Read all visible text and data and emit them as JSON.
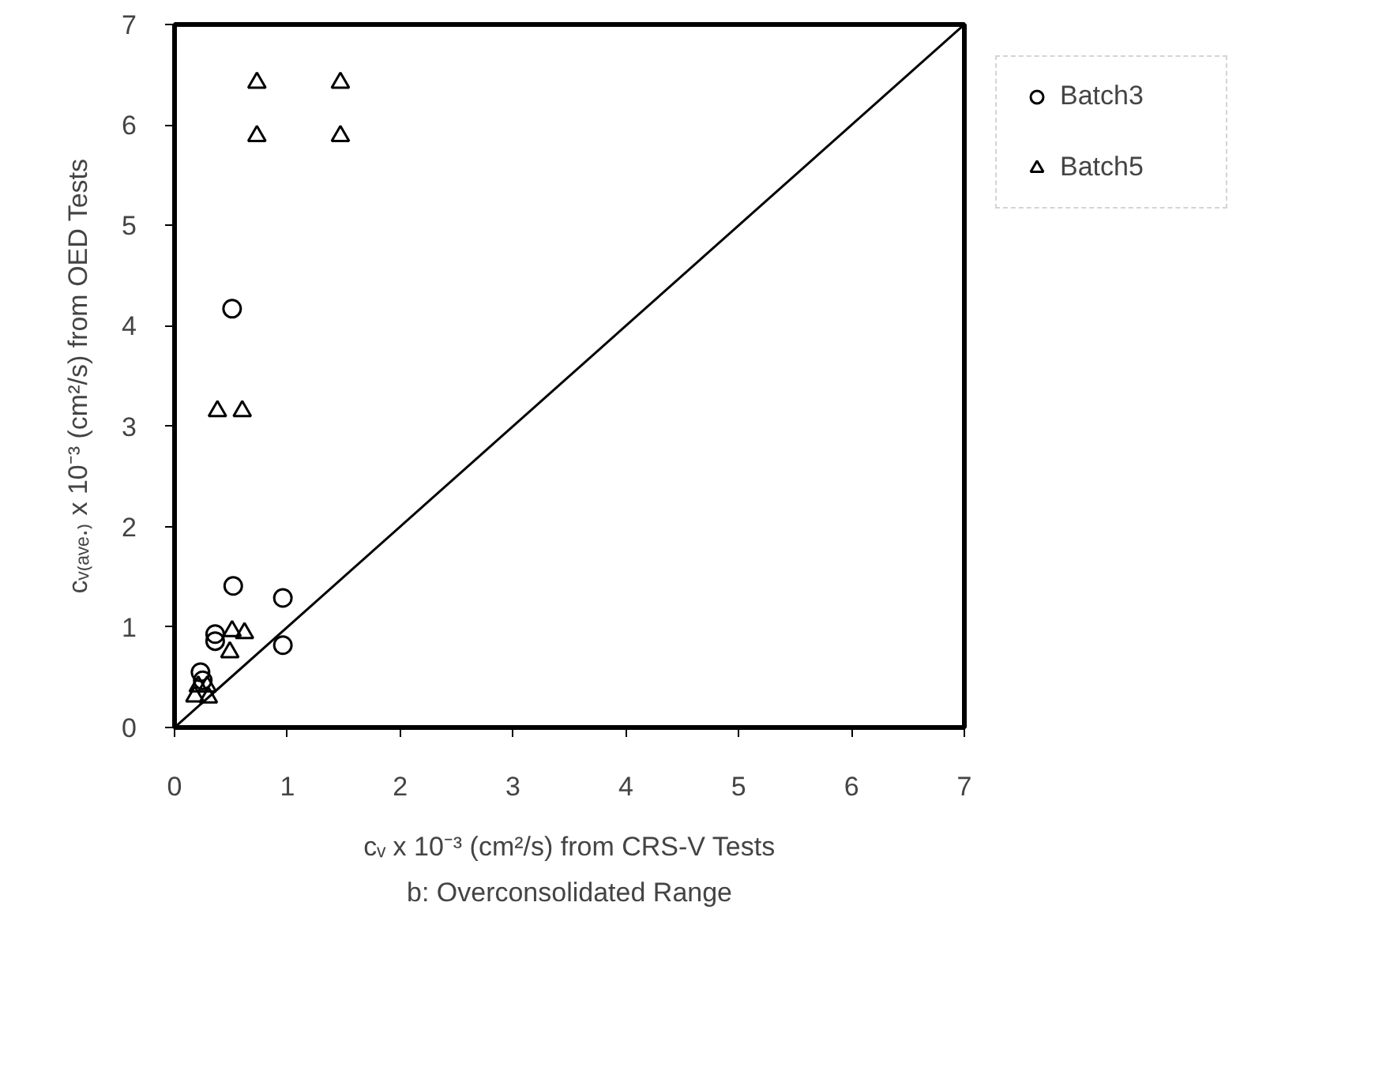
{
  "chart_data": {
    "type": "scatter",
    "title": "b: Overconsolidated Range",
    "xlabel": "cᵥ x 10⁻³ (cm²/s) from CRS-V Tests",
    "ylabel": "cᵥ₍ₐᵥₑ.₎ x 10⁻³ (cm²/s) from OED Tests",
    "xlim": [
      0,
      7
    ],
    "ylim": [
      0,
      7
    ],
    "xticks": [
      0,
      1,
      2,
      3,
      4,
      5,
      6,
      7
    ],
    "yticks": [
      0,
      1,
      2,
      3,
      4,
      5,
      6,
      7
    ],
    "grid": false,
    "legend": "right",
    "series": [
      {
        "name": "Batch3",
        "color": "#000000",
        "marker": "circle",
        "x": [
          0.51,
          0.52,
          0.96,
          0.96,
          0.36,
          0.36,
          0.23,
          0.25
        ],
        "values": [
          4.17,
          1.41,
          1.29,
          0.82,
          0.93,
          0.86,
          0.55,
          0.47
        ]
      },
      {
        "name": "Batch5",
        "color": "#000000",
        "marker": "triangle",
        "x": [
          0.73,
          1.47,
          0.73,
          1.47,
          0.38,
          0.6,
          0.51,
          0.62,
          0.49,
          0.21,
          0.29,
          0.18,
          0.3
        ],
        "values": [
          6.42,
          6.42,
          5.89,
          5.89,
          3.15,
          3.15,
          0.96,
          0.94,
          0.75,
          0.41,
          0.41,
          0.31,
          0.3
        ]
      },
      {
        "type": "line",
        "color": "#000000",
        "x": [
          0,
          7
        ],
        "values": [
          0,
          7
        ]
      }
    ]
  }
}
